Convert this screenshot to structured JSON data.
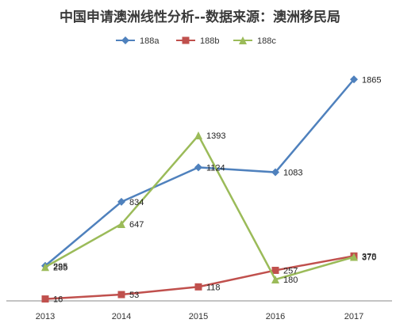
{
  "chart_data": {
    "type": "line",
    "title": "中国申请澳洲线性分析--数据来源：澳洲移民局",
    "xlabel": "",
    "ylabel": "",
    "categories": [
      "2013",
      "2014",
      "2015",
      "2016",
      "2017"
    ],
    "ylim": [
      0,
      2000
    ],
    "grid": false,
    "legend": "top",
    "series": [
      {
        "name": "188a",
        "color": "#4f81bd",
        "marker": "diamond",
        "values": [
          295,
          834,
          1124,
          1083,
          1865
        ]
      },
      {
        "name": "188b",
        "color": "#c0504d",
        "marker": "square",
        "values": [
          16,
          53,
          118,
          257,
          378
        ]
      },
      {
        "name": "188c",
        "color": "#9bbb59",
        "marker": "triangle",
        "values": [
          285,
          647,
          1393,
          180,
          370
        ]
      }
    ]
  }
}
